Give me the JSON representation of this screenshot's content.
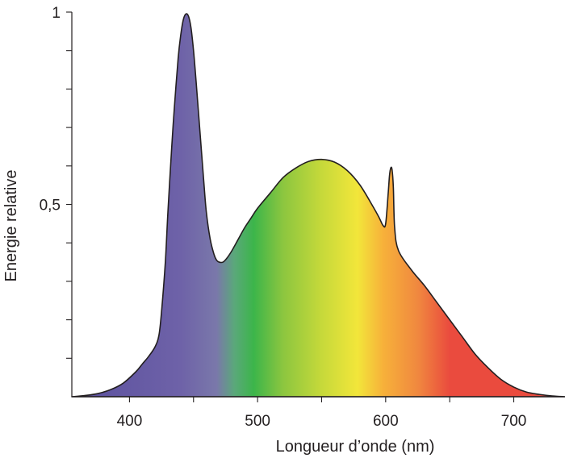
{
  "chart_data": {
    "type": "area",
    "title": "",
    "xlabel": "Longueur d’onde (nm)",
    "ylabel": "Energie relative",
    "xlim": [
      355,
      740
    ],
    "ylim": [
      0,
      1
    ],
    "x_ticks": [
      400,
      500,
      600,
      700
    ],
    "x_tick_labels": [
      "400",
      "500",
      "600",
      "700"
    ],
    "x_minor_ticks": [
      450,
      550,
      650
    ],
    "y_ticks": [
      0.5,
      1
    ],
    "y_tick_labels": [
      "0,5",
      "1"
    ],
    "y_minor_ticks": [
      0.1,
      0.2,
      0.3,
      0.4,
      0.6,
      0.7,
      0.8,
      0.9
    ],
    "grid": false,
    "fill": "visible-spectrum gradient",
    "gradient_stops": [
      {
        "wavelength": 355,
        "color": "#5a4f9e"
      },
      {
        "wavelength": 440,
        "color": "#6e62a8"
      },
      {
        "wavelength": 468,
        "color": "#7a78aa"
      },
      {
        "wavelength": 482,
        "color": "#5aa87a"
      },
      {
        "wavelength": 497,
        "color": "#3cb54a"
      },
      {
        "wavelength": 520,
        "color": "#8cc63f"
      },
      {
        "wavelength": 550,
        "color": "#c6d93a"
      },
      {
        "wavelength": 578,
        "color": "#f2e63a"
      },
      {
        "wavelength": 598,
        "color": "#f7b13a"
      },
      {
        "wavelength": 625,
        "color": "#f0883f"
      },
      {
        "wavelength": 650,
        "color": "#ea4b3e"
      },
      {
        "wavelength": 740,
        "color": "#ea4b3e"
      }
    ],
    "series": [
      {
        "x": [
          355,
          365,
          375,
          385,
          395,
          405,
          410,
          415,
          420,
          423,
          425,
          428,
          430,
          433,
          435,
          438,
          440,
          442,
          444,
          446,
          448,
          450,
          452,
          455,
          458,
          460,
          463,
          466,
          468,
          470,
          473,
          476,
          480,
          485,
          490,
          495,
          500,
          510,
          520,
          530,
          540,
          550,
          560,
          570,
          580,
          590,
          595,
          598,
          600,
          602,
          603,
          604,
          605,
          606,
          607,
          610,
          620,
          630,
          640,
          650,
          660,
          670,
          680,
          690,
          700,
          710,
          720,
          730,
          740
        ],
        "y": [
          0.0,
          0.003,
          0.008,
          0.018,
          0.035,
          0.065,
          0.085,
          0.105,
          0.13,
          0.16,
          0.22,
          0.35,
          0.48,
          0.65,
          0.75,
          0.88,
          0.94,
          0.98,
          0.995,
          0.99,
          0.96,
          0.9,
          0.82,
          0.69,
          0.56,
          0.48,
          0.41,
          0.37,
          0.355,
          0.35,
          0.35,
          0.36,
          0.38,
          0.41,
          0.44,
          0.465,
          0.49,
          0.53,
          0.57,
          0.595,
          0.612,
          0.617,
          0.61,
          0.588,
          0.55,
          0.495,
          0.465,
          0.445,
          0.45,
          0.53,
          0.575,
          0.595,
          0.59,
          0.545,
          0.44,
          0.38,
          0.33,
          0.29,
          0.245,
          0.2,
          0.155,
          0.11,
          0.075,
          0.045,
          0.025,
          0.012,
          0.006,
          0.002,
          0.0
        ]
      }
    ]
  }
}
